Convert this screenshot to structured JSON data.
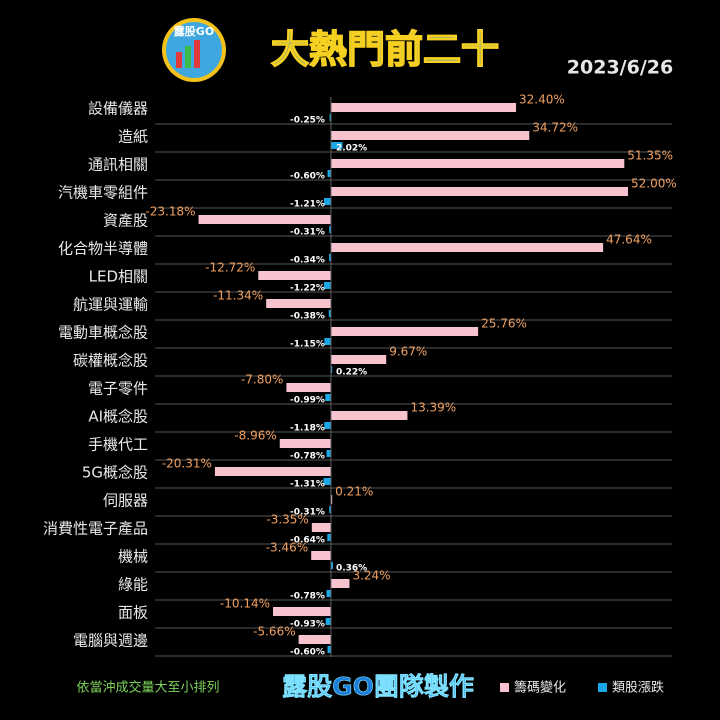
{
  "logo": "露股GO",
  "chart_data": {
    "type": "grouped-hbar",
    "title": "大熱門前二十",
    "date": "2023/6/26",
    "footnote": "依當沖成交量大至小排列",
    "credit": "露股GO團隊製作",
    "categories": [
      "設備儀器",
      "造紙",
      "通訊相關",
      "汽機車零組件",
      "資產股",
      "化合物半導體",
      "LED相關",
      "航運與運輸",
      "電動車概念股",
      "碳權概念股",
      "電子零件",
      "AI概念股",
      "手機代工",
      "5G概念股",
      "伺服器",
      "消費性電子產品",
      "機械",
      "綠能",
      "面板",
      "電腦與週邊"
    ],
    "xlim": [
      -30.8,
      59.7
    ],
    "series": [
      {
        "name": "籌碼變化",
        "color": "#f7c3cf",
        "label_color": "#f0a060",
        "values": [
          32.4,
          34.72,
          51.35,
          52.0,
          -23.18,
          47.64,
          -12.72,
          -11.34,
          25.76,
          9.67,
          -7.8,
          13.39,
          -8.96,
          -20.31,
          0.21,
          -3.35,
          -3.46,
          3.24,
          -10.14,
          -5.66
        ],
        "value_labels": [
          "32.40%",
          "34.72%",
          "51.35%",
          "52.00%",
          "-23.18%",
          "47.64%",
          "-12.72%",
          "-11.34%",
          "25.76%",
          "9.67%",
          "-7.80%",
          "13.39%",
          "-8.96%",
          "-20.31%",
          "0.21%",
          "-3.35%",
          "-3.46%",
          "3.24%",
          "-10.14%",
          "-5.66%"
        ]
      },
      {
        "name": "類股漲跌",
        "color": "#1aa7e6",
        "label_color": "#ffffff",
        "values": [
          -0.25,
          2.02,
          -0.6,
          -1.21,
          -0.31,
          -0.34,
          -1.22,
          -0.38,
          -1.15,
          0.22,
          -0.99,
          -1.18,
          -0.78,
          -1.31,
          -0.31,
          -0.64,
          0.36,
          -0.78,
          -0.93,
          -0.6
        ],
        "value_labels": [
          "-0.25%",
          "2.02%",
          "-0.60%",
          "-1.21%",
          "-0.31%",
          "-0.34%",
          "-1.22%",
          "-0.38%",
          "-1.15%",
          "0.22%",
          "-0.99%",
          "-1.18%",
          "-0.78%",
          "-1.31%",
          "-0.31%",
          "-0.64%",
          "0.36%",
          "-0.78%",
          "-0.93%",
          "-0.60%"
        ]
      }
    ]
  }
}
